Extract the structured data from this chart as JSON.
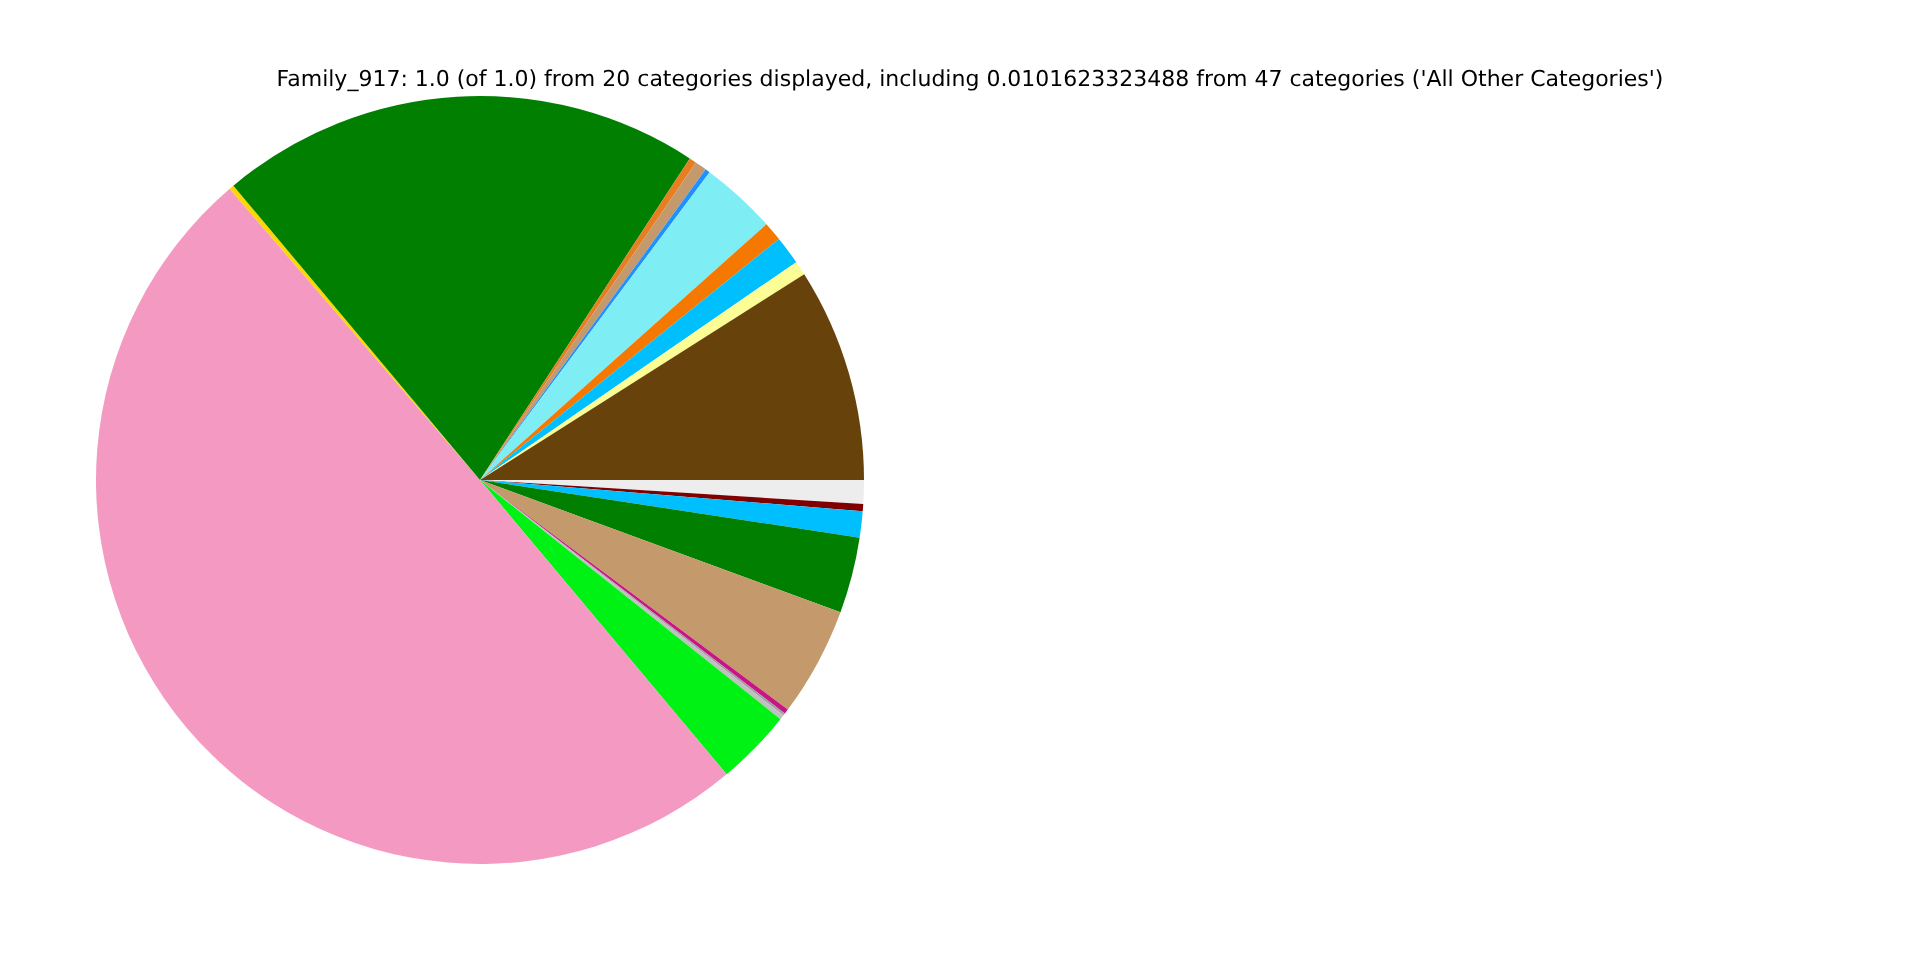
{
  "chart_data": {
    "type": "pie",
    "title": "Family_917: 1.0 (of 1.0) from 20 categories displayed, including 0.0101623323488 from 47 categories ('All Other Categories')",
    "categories": [
      null,
      null,
      null,
      null,
      null,
      null,
      null,
      null,
      null,
      null,
      null,
      null,
      null,
      null,
      null,
      null,
      null,
      null,
      null,
      null
    ],
    "values": [
      9.0,
      0.6,
      1.2,
      0.8,
      3.2,
      0.2,
      0.5,
      0.3,
      20.3,
      0.2,
      49.8,
      3.2,
      0.2,
      0.1,
      0.2,
      4.6,
      3.2,
      1.1,
      0.3,
      1.0
    ],
    "colors": [
      "#68420b",
      "#fdfd96",
      "#00bfff",
      "#f57900",
      "#7fedf4",
      "#1e90ff",
      "#c49a6c",
      "#e67e22",
      "#007f00",
      "#ffd700",
      "#f49ac2",
      "#00f214",
      "#c0c0c0",
      "#a0a0a0",
      "#c71585",
      "#c49a6c",
      "#007f00",
      "#00bfff",
      "#800000",
      "#ededed"
    ],
    "legend": false
  }
}
